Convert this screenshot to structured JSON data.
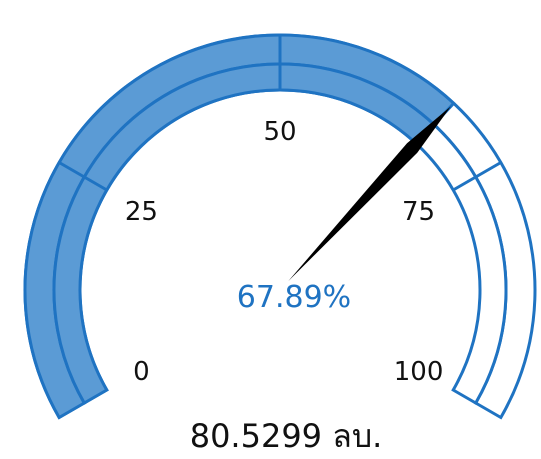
{
  "chart_data": {
    "type": "gauge",
    "min": 0,
    "max": 100,
    "value": 67.89,
    "value_label": "67.89%",
    "caption": "80.5299 ลบ.",
    "ticks": [
      0,
      25,
      50,
      75,
      100
    ],
    "tick_labels": [
      "0",
      "25",
      "50",
      "75",
      "100"
    ],
    "sweep_degrees": 240
  },
  "colors": {
    "fill": "#5B9BD5",
    "outline": "#1F73C2",
    "needle": "#000000",
    "percent_text": "#1F73C2"
  }
}
